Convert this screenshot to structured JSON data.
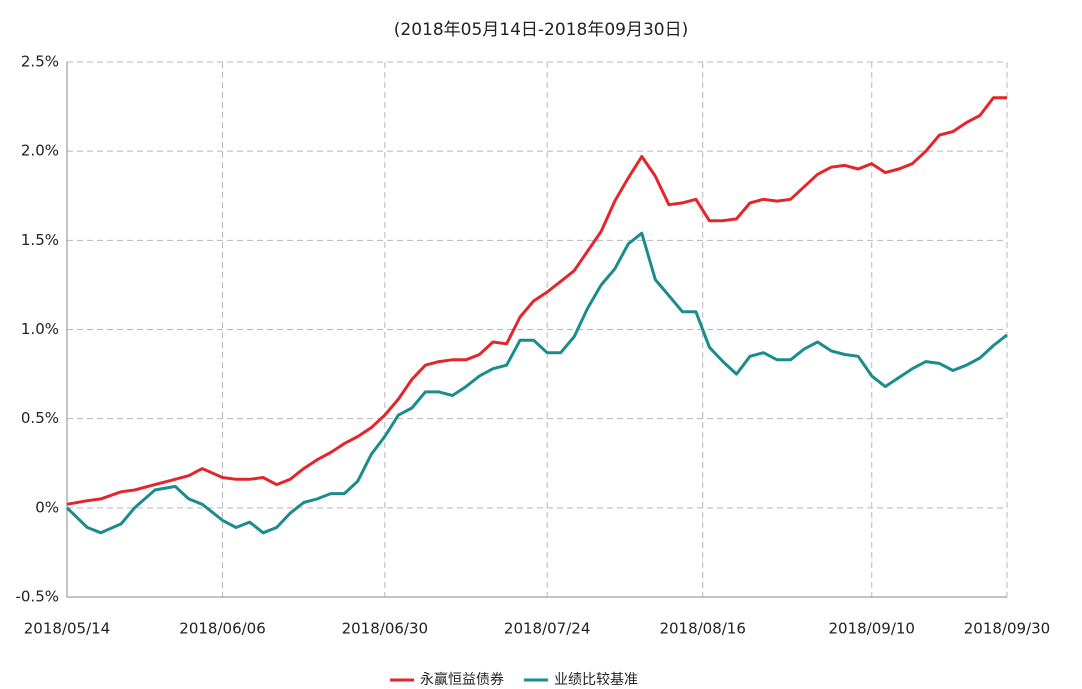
{
  "chart_data": {
    "type": "line",
    "title": "(2018年05月14日-2018年09月30日)",
    "x": [
      "2018/05/14",
      "2018/05/17",
      "2018/05/19",
      "2018/05/22",
      "2018/05/24",
      "2018/05/27",
      "2018/05/30",
      "2018/06/01",
      "2018/06/03",
      "2018/06/06",
      "2018/06/08",
      "2018/06/10",
      "2018/06/12",
      "2018/06/14",
      "2018/06/16",
      "2018/06/18",
      "2018/06/20",
      "2018/06/22",
      "2018/06/24",
      "2018/06/26",
      "2018/06/28",
      "2018/06/30",
      "2018/07/02",
      "2018/07/04",
      "2018/07/06",
      "2018/07/08",
      "2018/07/10",
      "2018/07/12",
      "2018/07/14",
      "2018/07/16",
      "2018/07/18",
      "2018/07/20",
      "2018/07/22",
      "2018/07/24",
      "2018/07/26",
      "2018/07/28",
      "2018/07/30",
      "2018/08/01",
      "2018/08/03",
      "2018/08/05",
      "2018/08/07",
      "2018/08/09",
      "2018/08/11",
      "2018/08/13",
      "2018/08/15",
      "2018/08/17",
      "2018/08/19",
      "2018/08/21",
      "2018/08/23",
      "2018/08/25",
      "2018/08/27",
      "2018/08/29",
      "2018/08/31",
      "2018/09/02",
      "2018/09/04",
      "2018/09/06",
      "2018/09/08",
      "2018/09/10",
      "2018/09/12",
      "2018/09/14",
      "2018/09/16",
      "2018/09/18",
      "2018/09/20",
      "2018/09/22",
      "2018/09/24",
      "2018/09/26",
      "2018/09/28",
      "2018/09/30"
    ],
    "series": [
      {
        "name": "永赢恒益债券",
        "color": "#e3262b",
        "values": [
          0.02,
          0.04,
          0.05,
          0.09,
          0.1,
          0.13,
          0.16,
          0.18,
          0.22,
          0.17,
          0.16,
          0.16,
          0.17,
          0.13,
          0.16,
          0.22,
          0.27,
          0.31,
          0.36,
          0.4,
          0.45,
          0.52,
          0.61,
          0.72,
          0.8,
          0.82,
          0.83,
          0.83,
          0.86,
          0.93,
          0.92,
          1.07,
          1.16,
          1.21,
          1.27,
          1.33,
          1.44,
          1.55,
          1.72,
          1.85,
          1.97,
          1.86,
          1.7,
          1.71,
          1.73,
          1.61,
          1.61,
          1.62,
          1.71,
          1.73,
          1.72,
          1.73,
          1.8,
          1.87,
          1.91,
          1.92,
          1.9,
          1.93,
          1.88,
          1.9,
          1.93,
          2.0,
          2.09,
          2.11,
          2.16,
          2.2,
          2.3,
          2.3
        ]
      },
      {
        "name": "业绩比较基准",
        "color": "#1b8c8c",
        "values": [
          0.0,
          -0.11,
          -0.14,
          -0.09,
          0.0,
          0.1,
          0.12,
          0.05,
          0.02,
          -0.07,
          -0.11,
          -0.08,
          -0.14,
          -0.11,
          -0.03,
          0.03,
          0.05,
          0.08,
          0.08,
          0.15,
          0.3,
          0.4,
          0.52,
          0.56,
          0.65,
          0.65,
          0.63,
          0.68,
          0.74,
          0.78,
          0.8,
          0.94,
          0.94,
          0.87,
          0.87,
          0.96,
          1.12,
          1.25,
          1.34,
          1.48,
          1.54,
          1.28,
          1.19,
          1.1,
          1.1,
          0.9,
          0.82,
          0.75,
          0.85,
          0.87,
          0.83,
          0.83,
          0.89,
          0.93,
          0.88,
          0.86,
          0.85,
          0.74,
          0.68,
          0.73,
          0.78,
          0.82,
          0.81,
          0.77,
          0.8,
          0.84,
          0.91,
          0.97
        ]
      }
    ],
    "xlim": [
      "2018/05/14",
      "2018/09/30"
    ],
    "xticks": [
      "2018/05/14",
      "2018/06/06",
      "2018/06/30",
      "2018/07/24",
      "2018/08/16",
      "2018/09/10",
      "2018/09/30"
    ],
    "ylim": [
      -0.5,
      2.5
    ],
    "yticks": [
      {
        "value": -0.5,
        "label": "-0.5%"
      },
      {
        "value": 0,
        "label": "0%"
      },
      {
        "value": 0.5,
        "label": "0.5%"
      },
      {
        "value": 1.0,
        "label": "1.0%"
      },
      {
        "value": 1.5,
        "label": "1.5%"
      },
      {
        "value": 2.0,
        "label": "2.0%"
      },
      {
        "value": 2.5,
        "label": "2.5%"
      }
    ],
    "grid": true,
    "legend": "bottom"
  }
}
